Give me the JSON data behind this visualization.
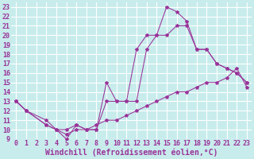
{
  "xlabel": "Windchill (Refroidissement éolien,°C)",
  "background_color": "#c8ecec",
  "grid_color": "#ffffff",
  "line_color": "#993399",
  "xlim": [
    -0.5,
    23.5
  ],
  "ylim": [
    9,
    23.5
  ],
  "xticks": [
    0,
    1,
    2,
    3,
    4,
    5,
    6,
    7,
    8,
    9,
    10,
    11,
    12,
    13,
    14,
    15,
    16,
    17,
    18,
    19,
    20,
    21,
    22,
    23
  ],
  "yticks": [
    9,
    10,
    11,
    12,
    13,
    14,
    15,
    16,
    17,
    18,
    19,
    20,
    21,
    22,
    23
  ],
  "line1_x": [
    0,
    1,
    3,
    4,
    5,
    6,
    7,
    8,
    9,
    10,
    11,
    12,
    13,
    14,
    15,
    16,
    17,
    18,
    19,
    20,
    21,
    22,
    23
  ],
  "line1_y": [
    13,
    12,
    11,
    10,
    10,
    10.5,
    10,
    10.5,
    11,
    11,
    11.5,
    12,
    12.5,
    13,
    13.5,
    14,
    14,
    14.5,
    15,
    15,
    15.5,
    16.5,
    14.5
  ],
  "line2_x": [
    0,
    1,
    3,
    4,
    5,
    6,
    7,
    8,
    9,
    10,
    11,
    12,
    13,
    14,
    15,
    16,
    17,
    18,
    19,
    20,
    21,
    22,
    23
  ],
  "line2_y": [
    13,
    12,
    10.5,
    10,
    9.5,
    10,
    10,
    10,
    15,
    13,
    13,
    13,
    18.5,
    20,
    20,
    21,
    21,
    18.5,
    18.5,
    17,
    16.5,
    16,
    15
  ],
  "line3_x": [
    0,
    1,
    3,
    4,
    5,
    6,
    7,
    8,
    9,
    10,
    11,
    12,
    13,
    14,
    15,
    16,
    17,
    18,
    19,
    20,
    21,
    22,
    23
  ],
  "line3_y": [
    13,
    12,
    10.5,
    10,
    9,
    10.5,
    10,
    10,
    13,
    13,
    13,
    18.5,
    20,
    20,
    23,
    22.5,
    21.5,
    18.5,
    18.5,
    17,
    16.5,
    16,
    15
  ],
  "font_family": "monospace",
  "tick_fontsize": 6,
  "label_fontsize": 7,
  "marker": "*",
  "markersize": 3.0,
  "linewidth": 0.75
}
